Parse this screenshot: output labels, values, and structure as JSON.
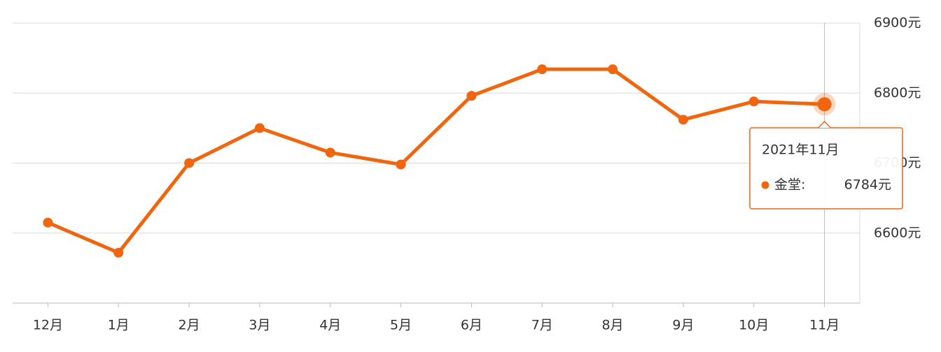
{
  "chart_data": {
    "type": "line",
    "categories": [
      "12月",
      "1月",
      "2月",
      "3月",
      "4月",
      "5月",
      "6月",
      "7月",
      "8月",
      "9月",
      "10月",
      "11月"
    ],
    "series": [
      {
        "color": "#f0650e",
        "values": [
          6615,
          6572,
          6700,
          6750,
          6715,
          6698,
          6796,
          6834,
          6834,
          6762,
          6788,
          6784
        ],
        "value_labels": [
          null,
          null,
          null,
          null,
          null,
          null,
          null,
          null,
          null,
          null,
          null,
          "6784元"
        ]
      }
    ],
    "ylim": [
      6500,
      6900
    ],
    "yticks": [
      {
        "value": 6600,
        "label": "6600元"
      },
      {
        "value": 6700,
        "label": "6700元"
      },
      {
        "value": 6800,
        "label": "6800元"
      },
      {
        "value": 6900,
        "label": "6900元"
      }
    ],
    "grid": true,
    "tooltip": {
      "index": 11,
      "title": "2021年11月",
      "label": "金堂:"
    }
  }
}
